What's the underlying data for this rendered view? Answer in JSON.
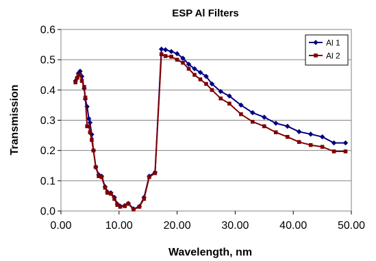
{
  "chart_data": {
    "type": "line",
    "title": "ESP Al Filters",
    "xlabel": "Wavelength, nm",
    "ylabel": "Transmission",
    "xlim": [
      0,
      50
    ],
    "ylim": [
      0,
      0.6
    ],
    "xticks": [
      "0.00",
      "10.00",
      "20.00",
      "30.00",
      "40.00",
      "50.00"
    ],
    "yticks": [
      "0.0",
      "0.1",
      "0.2",
      "0.3",
      "0.4",
      "0.5",
      "0.6"
    ],
    "grid": "horizontal",
    "legend_position": "top-right",
    "series": [
      {
        "name": "Al 1",
        "color": "#000080",
        "marker": "diamond",
        "points": [
          [
            2.5,
            0.43
          ],
          [
            2.8,
            0.44
          ],
          [
            3.0,
            0.455
          ],
          [
            3.3,
            0.462
          ],
          [
            3.6,
            0.445
          ],
          [
            4.0,
            0.405
          ],
          [
            4.2,
            0.37
          ],
          [
            4.5,
            0.345
          ],
          [
            4.8,
            0.305
          ],
          [
            5.0,
            0.292
          ],
          [
            5.3,
            0.253
          ],
          [
            5.6,
            0.2
          ],
          [
            6.0,
            0.145
          ],
          [
            6.5,
            0.12
          ],
          [
            7.0,
            0.115
          ],
          [
            7.6,
            0.08
          ],
          [
            8.0,
            0.063
          ],
          [
            8.6,
            0.06
          ],
          [
            9.2,
            0.045
          ],
          [
            9.7,
            0.023
          ],
          [
            10.2,
            0.016
          ],
          [
            11.0,
            0.018
          ],
          [
            11.6,
            0.025
          ],
          [
            12.5,
            0.007
          ],
          [
            13.5,
            0.015
          ],
          [
            14.3,
            0.045
          ],
          [
            15.2,
            0.115
          ],
          [
            16.2,
            0.128
          ],
          [
            17.3,
            0.535
          ],
          [
            18.0,
            0.533
          ],
          [
            19.0,
            0.527
          ],
          [
            20.0,
            0.52
          ],
          [
            21.0,
            0.505
          ],
          [
            22.0,
            0.485
          ],
          [
            23.0,
            0.47
          ],
          [
            24.0,
            0.458
          ],
          [
            25.0,
            0.445
          ],
          [
            26.0,
            0.42
          ],
          [
            27.5,
            0.395
          ],
          [
            29.0,
            0.38
          ],
          [
            31.0,
            0.35
          ],
          [
            33.0,
            0.325
          ],
          [
            35.0,
            0.31
          ],
          [
            37.0,
            0.29
          ],
          [
            39.0,
            0.28
          ],
          [
            41.0,
            0.262
          ],
          [
            43.0,
            0.254
          ],
          [
            45.0,
            0.245
          ],
          [
            47.0,
            0.225
          ],
          [
            49.0,
            0.225
          ]
        ]
      },
      {
        "name": "Al 2",
        "color": "#800000",
        "marker": "square",
        "points": [
          [
            2.5,
            0.425
          ],
          [
            2.8,
            0.44
          ],
          [
            3.0,
            0.45
          ],
          [
            3.3,
            0.45
          ],
          [
            3.6,
            0.43
          ],
          [
            4.0,
            0.41
          ],
          [
            4.2,
            0.375
          ],
          [
            4.5,
            0.28
          ],
          [
            4.8,
            0.28
          ],
          [
            5.0,
            0.26
          ],
          [
            5.3,
            0.235
          ],
          [
            5.6,
            0.2
          ],
          [
            6.0,
            0.145
          ],
          [
            6.5,
            0.115
          ],
          [
            7.0,
            0.112
          ],
          [
            7.6,
            0.077
          ],
          [
            8.0,
            0.06
          ],
          [
            8.6,
            0.057
          ],
          [
            9.2,
            0.04
          ],
          [
            9.7,
            0.02
          ],
          [
            10.2,
            0.014
          ],
          [
            11.0,
            0.016
          ],
          [
            11.6,
            0.024
          ],
          [
            12.5,
            0.005
          ],
          [
            13.5,
            0.014
          ],
          [
            14.3,
            0.04
          ],
          [
            15.2,
            0.112
          ],
          [
            16.2,
            0.125
          ],
          [
            17.3,
            0.518
          ],
          [
            18.0,
            0.512
          ],
          [
            19.0,
            0.51
          ],
          [
            20.0,
            0.5
          ],
          [
            21.0,
            0.49
          ],
          [
            22.0,
            0.47
          ],
          [
            23.0,
            0.45
          ],
          [
            24.0,
            0.435
          ],
          [
            25.0,
            0.42
          ],
          [
            26.0,
            0.4
          ],
          [
            27.5,
            0.372
          ],
          [
            29.0,
            0.355
          ],
          [
            31.0,
            0.32
          ],
          [
            33.0,
            0.295
          ],
          [
            35.0,
            0.28
          ],
          [
            37.0,
            0.26
          ],
          [
            39.0,
            0.245
          ],
          [
            41.0,
            0.228
          ],
          [
            43.0,
            0.218
          ],
          [
            45.0,
            0.212
          ],
          [
            47.0,
            0.197
          ],
          [
            49.0,
            0.197
          ]
        ]
      }
    ]
  }
}
